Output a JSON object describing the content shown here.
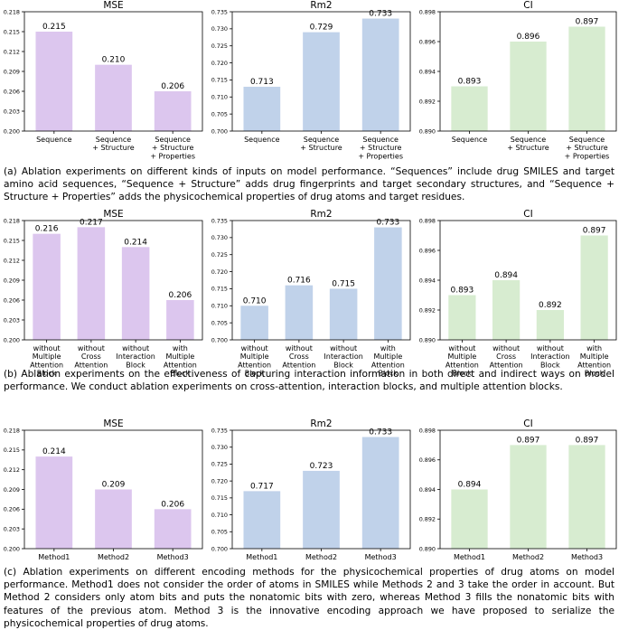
{
  "colors": {
    "mse": "#dcc6ee",
    "rm2": "#c0d2ea",
    "ci": "#d7ecd0"
  },
  "chart_data": [
    {
      "type": "bar",
      "row": 0,
      "title": "MSE",
      "categories": [
        "Sequence",
        "Sequence\n+ Structure",
        "Sequence\n+ Structure\n+ Properties"
      ],
      "values": [
        0.215,
        0.21,
        0.206
      ],
      "labels": [
        "0.215",
        "0.210",
        "0.206"
      ],
      "ylim": [
        0.2,
        0.218
      ],
      "yticks": [
        "0.200",
        "0.203",
        "0.206",
        "0.209",
        "0.212",
        "0.215",
        "0.218"
      ]
    },
    {
      "type": "bar",
      "row": 0,
      "title": "Rm2",
      "categories": [
        "Sequence",
        "Sequence\n+ Structure",
        "Sequence\n+ Structure\n+ Properties"
      ],
      "values": [
        0.713,
        0.729,
        0.733
      ],
      "labels": [
        "0.713",
        "0.729",
        "0.733"
      ],
      "ylim": [
        0.7,
        0.735
      ],
      "yticks": [
        "0.700",
        "0.705",
        "0.710",
        "0.715",
        "0.720",
        "0.725",
        "0.730",
        "0.735"
      ]
    },
    {
      "type": "bar",
      "row": 0,
      "title": "CI",
      "categories": [
        "Sequence",
        "Sequence\n+ Structure",
        "Sequence\n+ Structure\n+ Properties"
      ],
      "values": [
        0.893,
        0.896,
        0.897
      ],
      "labels": [
        "0.893",
        "0.896",
        "0.897"
      ],
      "ylim": [
        0.89,
        0.898
      ],
      "yticks": [
        "0.890",
        "0.892",
        "0.894",
        "0.896",
        "0.898"
      ]
    },
    {
      "type": "bar",
      "row": 1,
      "title": "MSE",
      "categories": [
        "without\nMultiple\nAttention\nBlock",
        "without\nCross\nAttention",
        "without\nInteraction\nBlock",
        "with\nMultiple\nAttention\nBlock"
      ],
      "values": [
        0.216,
        0.217,
        0.214,
        0.206
      ],
      "labels": [
        "0.216",
        "0.217",
        "0.214",
        "0.206"
      ],
      "ylim": [
        0.2,
        0.218
      ],
      "yticks": [
        "0.200",
        "0.203",
        "0.206",
        "0.209",
        "0.212",
        "0.215",
        "0.218"
      ]
    },
    {
      "type": "bar",
      "row": 1,
      "title": "Rm2",
      "categories": [
        "without\nMultiple\nAttention\nBlock",
        "without\nCross\nAttention",
        "without\nInteraction\nBlock",
        "with\nMultiple\nAttention\nBlock"
      ],
      "values": [
        0.71,
        0.716,
        0.715,
        0.733
      ],
      "labels": [
        "0.710",
        "0.716",
        "0.715",
        "0.733"
      ],
      "ylim": [
        0.7,
        0.735
      ],
      "yticks": [
        "0.700",
        "0.705",
        "0.710",
        "0.715",
        "0.720",
        "0.725",
        "0.730",
        "0.735"
      ]
    },
    {
      "type": "bar",
      "row": 1,
      "title": "CI",
      "categories": [
        "without\nMultiple\nAttention\nBlock",
        "without\nCross\nAttention",
        "without\nInteraction\nBlock",
        "with\nMultiple\nAttention\nBlock"
      ],
      "values": [
        0.893,
        0.894,
        0.892,
        0.897
      ],
      "labels": [
        "0.893",
        "0.894",
        "0.892",
        "0.897"
      ],
      "ylim": [
        0.89,
        0.898
      ],
      "yticks": [
        "0.890",
        "0.892",
        "0.894",
        "0.896",
        "0.898"
      ]
    },
    {
      "type": "bar",
      "row": 2,
      "title": "MSE",
      "categories": [
        "Method1",
        "Method2",
        "Method3"
      ],
      "values": [
        0.214,
        0.209,
        0.206
      ],
      "labels": [
        "0.214",
        "0.209",
        "0.206"
      ],
      "ylim": [
        0.2,
        0.218
      ],
      "yticks": [
        "0.200",
        "0.203",
        "0.206",
        "0.209",
        "0.212",
        "0.215",
        "0.218"
      ]
    },
    {
      "type": "bar",
      "row": 2,
      "title": "Rm2",
      "categories": [
        "Method1",
        "Method2",
        "Method3"
      ],
      "values": [
        0.717,
        0.723,
        0.733
      ],
      "labels": [
        "0.717",
        "0.723",
        "0.733"
      ],
      "ylim": [
        0.7,
        0.735
      ],
      "yticks": [
        "0.700",
        "0.705",
        "0.710",
        "0.715",
        "0.720",
        "0.725",
        "0.730",
        "0.735"
      ]
    },
    {
      "type": "bar",
      "row": 2,
      "title": "CI",
      "categories": [
        "Method1",
        "Method2",
        "Method3"
      ],
      "values": [
        0.894,
        0.897,
        0.897
      ],
      "labels": [
        "0.894",
        "0.897",
        "0.897"
      ],
      "ylim": [
        0.89,
        0.898
      ],
      "yticks": [
        "0.890",
        "0.892",
        "0.894",
        "0.896",
        "0.898"
      ]
    }
  ],
  "captions": [
    "(a) Ablation experiments on different kinds of inputs on model performance. “Sequences” include drug SMILES and target amino acid sequences, “Sequence + Structure” adds drug fingerprints and target secondary structures, and “Sequence + Structure + Properties” adds the physicochemical properties of drug atoms and target residues.",
    "(b) Ablation experiments on the effectiveness of capturing interaction information in both direct and indirect ways on model performance. We conduct ablation experiments on cross-attention, interaction blocks, and multiple attention blocks.",
    "(c) Ablation experiments on different encoding methods for the physicochemical properties of drug atoms on model performance. Method1 does not consider the order of atoms in SMILES while Methods 2 and 3 take the order in account. But Method 2 considers only atom bits and puts the nonatomic bits with zero, whereas Method 3 fills the nonatomic bits with features of the previous atom. Method 3 is the innovative encoding approach we have proposed to serialize the physicochemical properties of drug atoms."
  ]
}
